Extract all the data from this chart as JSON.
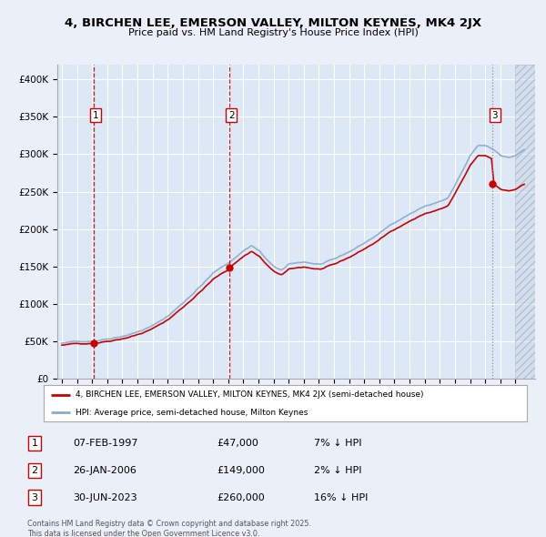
{
  "title_line1": "4, BIRCHEN LEE, EMERSON VALLEY, MILTON KEYNES, MK4 2JX",
  "title_line2": "Price paid vs. HM Land Registry's House Price Index (HPI)",
  "background_color": "#eaeff8",
  "plot_bg_color": "#dce8f5",
  "legend_line1": "4, BIRCHEN LEE, EMERSON VALLEY, MILTON KEYNES, MK4 2JX (semi-detached house)",
  "legend_line2": "HPI: Average price, semi-detached house, Milton Keynes",
  "footer": "Contains HM Land Registry data © Crown copyright and database right 2025.\nThis data is licensed under the Open Government Licence v3.0.",
  "sale_color": "#cc0000",
  "hpi_color": "#88aacc",
  "purchases": [
    {
      "date_x": 1997.09,
      "price": 47000,
      "label": "1",
      "linestyle": "--"
    },
    {
      "date_x": 2006.07,
      "price": 149000,
      "label": "2",
      "linestyle": "--"
    },
    {
      "date_x": 2023.49,
      "price": 260000,
      "label": "3",
      "linestyle": ":"
    }
  ],
  "ylim": [
    0,
    420000
  ],
  "xlim": [
    1994.7,
    2026.3
  ],
  "yticks": [
    0,
    50000,
    100000,
    150000,
    200000,
    250000,
    300000,
    350000,
    400000
  ],
  "xticks": [
    1995,
    1996,
    1997,
    1998,
    1999,
    2000,
    2001,
    2002,
    2003,
    2004,
    2005,
    2006,
    2007,
    2008,
    2009,
    2010,
    2011,
    2012,
    2013,
    2014,
    2015,
    2016,
    2017,
    2018,
    2019,
    2020,
    2021,
    2022,
    2023,
    2024,
    2025
  ],
  "future_start": 2025.0,
  "table_data": [
    {
      "num": "1",
      "date": "07-FEB-1997",
      "price": "£47,000",
      "note": "7% ↓ HPI"
    },
    {
      "num": "2",
      "date": "26-JAN-2006",
      "price": "£149,000",
      "note": "2% ↓ HPI"
    },
    {
      "num": "3",
      "date": "30-JUN-2023",
      "price": "£260,000",
      "note": "16% ↓ HPI"
    }
  ]
}
